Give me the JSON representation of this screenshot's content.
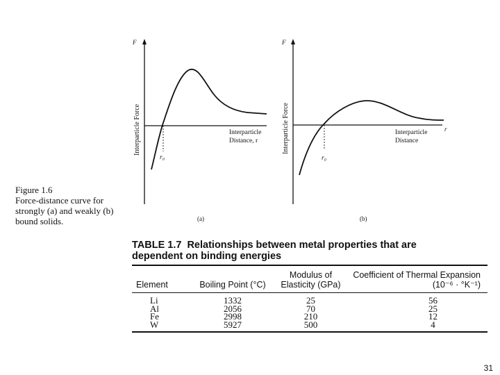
{
  "graph_a": {
    "y_axis_symbol": "F",
    "y_axis_label": "Interparticle Force",
    "x_axis_label_line1": "Interparticle",
    "x_axis_label_line2": "Distance, r",
    "r0_label": "r₀",
    "panel_label": "(a)"
  },
  "graph_b": {
    "y_axis_symbol": "F",
    "y_axis_label": "Interparticle Force",
    "x_axis_symbol": "r",
    "x_axis_label_line1": "Interparticle",
    "x_axis_label_line2": "Distance",
    "r0_label": "r₀",
    "panel_label": "(b)"
  },
  "figure_caption": {
    "title": "Figure 1.6",
    "text": "Force-distance curve for strongly (a) and weakly (b) bound solids."
  },
  "table": {
    "number": "TABLE 1.7",
    "title": "Relationships between metal properties that are dependent on binding energies",
    "headers": [
      "Element",
      "Boiling Point (°C)",
      "Modulus of Elasticity (GPa)",
      "Coefficient of Thermal Expansion (10⁻⁶ · °K⁻¹)"
    ],
    "rows": [
      [
        "Li",
        "1332",
        "25",
        "56"
      ],
      [
        "Al",
        "2056",
        "70",
        "25"
      ],
      [
        "Fe",
        "2998",
        "210",
        "12"
      ],
      [
        "W",
        "5927",
        "500",
        "4"
      ]
    ]
  },
  "page_number": "31"
}
